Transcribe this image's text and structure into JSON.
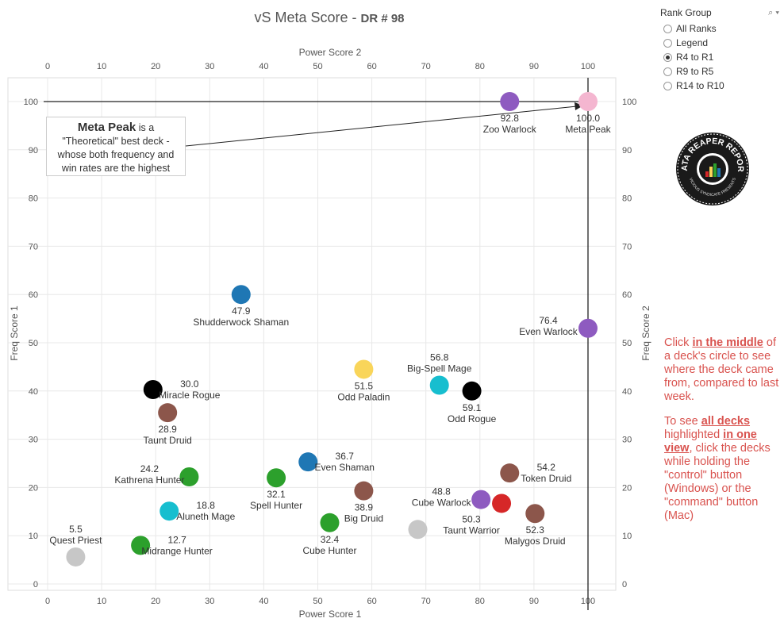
{
  "title": "vS Meta Score",
  "subtitle": "DR # 98",
  "filter": {
    "title": "Rank Group",
    "options": [
      {
        "label": "All Ranks",
        "selected": false
      },
      {
        "label": "Legend",
        "selected": false
      },
      {
        "label": "R4 to R1",
        "selected": true
      },
      {
        "label": "R9 to R5",
        "selected": false
      },
      {
        "label": "R14 to R10",
        "selected": false
      }
    ]
  },
  "annotation": {
    "bold": "Meta Peak",
    "text1": " is a",
    "text2": "\"Theoretical\" best deck -",
    "text3": "whose both frequency and",
    "text4": "win rates are the highest"
  },
  "notes": {
    "p1": [
      {
        "t": "Click ",
        "em": false
      },
      {
        "t": "in the middle",
        "em": true
      },
      {
        "t": " of a deck's circle to see where the deck came from, compared to last week.",
        "em": false
      }
    ],
    "p2": [
      {
        "t": "To see ",
        "em": false
      },
      {
        "t": "all decks",
        "em": true
      },
      {
        "t": " highlighted ",
        "em": false
      },
      {
        "t": "in one view",
        "em": true
      },
      {
        "t": ", click the decks while holding the \"control\" button (Windows) or the \"command\" button (Mac)",
        "em": false
      }
    ]
  },
  "chart_data": {
    "type": "scatter",
    "xlabel_bottom": "Power Score 1",
    "xlabel_top": "Power Score 2",
    "ylabel_left": "Freq Score 1",
    "ylabel_right": "Freq Score 2",
    "xlim": [
      -5,
      105
    ],
    "ylim": [
      -1,
      105
    ],
    "xticks": [
      0,
      10,
      20,
      30,
      40,
      50,
      60,
      70,
      80,
      90,
      100
    ],
    "yticks": [
      0,
      10,
      20,
      30,
      40,
      50,
      60,
      70,
      80,
      90,
      100
    ],
    "reference_lines": {
      "x": 100,
      "y": 100
    },
    "points": [
      {
        "name": "Zoo Warlock",
        "label": "92.8",
        "x": 85.5,
        "y": 100,
        "color": "#8e5bc0",
        "lpos": "below"
      },
      {
        "name": "Meta Peak",
        "label": "100.0",
        "x": 100,
        "y": 100,
        "color": "#f4b6d0",
        "lpos": "below"
      },
      {
        "name": "Shudderwock Shaman",
        "label": "47.9",
        "x": 35.8,
        "y": 60,
        "color": "#1f77b4",
        "lpos": "below"
      },
      {
        "name": "Even Warlock",
        "label": "76.4",
        "x": 100,
        "y": 53,
        "color": "#8e5bc0",
        "lpos": "left"
      },
      {
        "name": "Odd Paladin",
        "label": "51.5",
        "x": 58.5,
        "y": 44.5,
        "color": "#f9d55a",
        "lpos": "below"
      },
      {
        "name": "Big-Spell Mage",
        "label": "56.8",
        "x": 72.5,
        "y": 41.2,
        "color": "#17becf",
        "lpos": "above"
      },
      {
        "name": "Odd Rogue",
        "label": "59.1",
        "x": 78.5,
        "y": 40,
        "color": "#000000",
        "lpos": "below"
      },
      {
        "name": "Miracle Rogue",
        "label": "30.0",
        "x": 19.5,
        "y": 40.3,
        "color": "#000000",
        "lpos": "right"
      },
      {
        "name": "Taunt Druid",
        "label": "28.9",
        "x": 22.2,
        "y": 35.5,
        "color": "#8c564b",
        "lpos": "below"
      },
      {
        "name": "Even Shaman",
        "label": "36.7",
        "x": 48.2,
        "y": 25.3,
        "color": "#1f77b4",
        "lpos": "right"
      },
      {
        "name": "Kathrena Hunter",
        "label": "24.2",
        "x": 26.2,
        "y": 22.2,
        "color": "#2ca02c",
        "lpos": "left"
      },
      {
        "name": "Spell Hunter",
        "label": "32.1",
        "x": 42.3,
        "y": 22,
        "color": "#2ca02c",
        "lpos": "below"
      },
      {
        "name": "Token Druid",
        "label": "54.2",
        "x": 85.5,
        "y": 23,
        "color": "#8c564b",
        "lpos": "right"
      },
      {
        "name": "Big Druid",
        "label": "38.9",
        "x": 58.5,
        "y": 19.3,
        "color": "#8c564b",
        "lpos": "below"
      },
      {
        "name": "Cube Warlock",
        "label": "48.8",
        "x": 80.2,
        "y": 17.5,
        "color": "#8e5bc0",
        "lpos": "left"
      },
      {
        "name": "Taunt Warrior",
        "label": "50.3",
        "x": 84,
        "y": 16.7,
        "color": "#d62728",
        "lpos": "left-below"
      },
      {
        "name": "Malygos Druid",
        "label": "52.3",
        "x": 90.2,
        "y": 14.6,
        "color": "#8c564b",
        "lpos": "below"
      },
      {
        "name": "Aluneth Mage",
        "label": "18.8",
        "x": 22.5,
        "y": 15.1,
        "color": "#17becf",
        "lpos": "right"
      },
      {
        "name": "Cube Hunter",
        "label": "32.4",
        "x": 52.2,
        "y": 12.7,
        "color": "#2ca02c",
        "lpos": "below"
      },
      {
        "name": "",
        "label": "",
        "x": 68.5,
        "y": 11.3,
        "color": "#c7c7c7",
        "lpos": "none"
      },
      {
        "name": "Midrange Hunter",
        "label": "12.7",
        "x": 17.2,
        "y": 8,
        "color": "#2ca02c",
        "lpos": "right"
      },
      {
        "name": "Quest Priest",
        "label": "5.5",
        "x": 5.2,
        "y": 5.6,
        "color": "#c7c7c7",
        "lpos": "above"
      }
    ]
  },
  "colors": {
    "notes": "#d9534f",
    "grid": "#e8e8e8",
    "refline": "#222222"
  },
  "icons": {
    "search": "search-icon",
    "dropdown": "chevron-down-icon"
  },
  "logo": {
    "line1": "DATA REAPER REPORT",
    "line2": "VICIOUS SYNDICATE PRESENTS"
  }
}
